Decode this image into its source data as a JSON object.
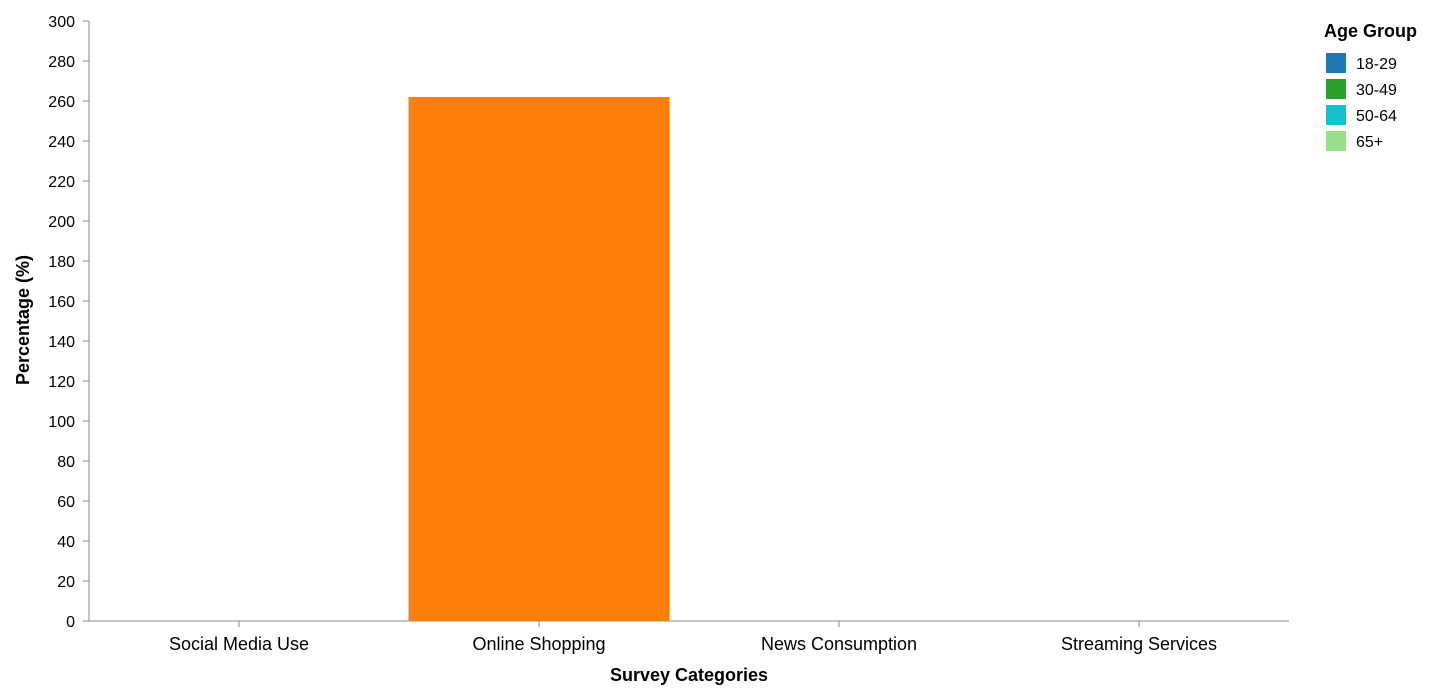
{
  "chart_data": {
    "type": "bar",
    "xlabel": "Survey Categories",
    "ylabel": "Percentage (%)",
    "categories": [
      "Social Media Use",
      "Online Shopping",
      "News Consumption",
      "Streaming Services"
    ],
    "values": [
      0,
      262,
      0,
      0
    ],
    "bar_color": "#ff7f0e",
    "ylim": [
      0,
      300
    ],
    "yticks": [
      0,
      20,
      40,
      60,
      80,
      100,
      120,
      140,
      160,
      180,
      200,
      220,
      240,
      260,
      280,
      300
    ],
    "grid": false,
    "legend": {
      "title": "Age Group",
      "position": "top-right",
      "items": [
        {
          "label": "18-29",
          "color": "#1f77b4"
        },
        {
          "label": "30-49",
          "color": "#2ca02c"
        },
        {
          "label": "50-64",
          "color": "#17becf"
        },
        {
          "label": "65+",
          "color": "#98df8a"
        }
      ]
    }
  }
}
